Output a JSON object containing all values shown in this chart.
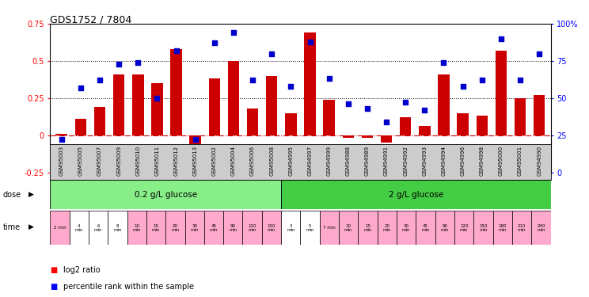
{
  "title": "GDS1752 / 7804",
  "categories": [
    "GSM95003",
    "GSM95005",
    "GSM95007",
    "GSM95009",
    "GSM95010",
    "GSM95011",
    "GSM95012",
    "GSM95013",
    "GSM95002",
    "GSM95004",
    "GSM95006",
    "GSM95008",
    "GSM94995",
    "GSM94997",
    "GSM94999",
    "GSM94988",
    "GSM94989",
    "GSM94991",
    "GSM94992",
    "GSM94993",
    "GSM94994",
    "GSM94996",
    "GSM94998",
    "GSM95000",
    "GSM95001",
    "GSM94990"
  ],
  "log2_ratio": [
    0.01,
    0.11,
    0.19,
    0.41,
    0.41,
    0.35,
    0.58,
    -0.12,
    0.38,
    0.5,
    0.18,
    0.4,
    0.15,
    0.69,
    0.24,
    -0.02,
    -0.02,
    -0.05,
    0.12,
    0.06,
    0.41,
    0.15,
    0.13,
    0.57,
    0.25,
    0.27
  ],
  "percentile_rank": [
    22,
    57,
    62,
    73,
    74,
    50,
    82,
    22,
    87,
    94,
    62,
    80,
    58,
    88,
    63,
    46,
    43,
    34,
    47,
    42,
    74,
    58,
    62,
    90,
    62,
    80
  ],
  "bar_color": "#cc0000",
  "scatter_color": "#0000cc",
  "hline_color": "#cc0000",
  "dotline_color": "#000000",
  "ylim_left": [
    -0.25,
    0.75
  ],
  "ylim_right": [
    0,
    100
  ],
  "yticks_left": [
    -0.25,
    0.0,
    0.25,
    0.5,
    0.75
  ],
  "yticks_left_labels": [
    "-0.25",
    "0",
    "0.25",
    "0.5",
    "0.75"
  ],
  "yticks_right": [
    0,
    25,
    50,
    75,
    100
  ],
  "yticks_right_labels": [
    "0",
    "25",
    "50",
    "75",
    "100%"
  ],
  "hlines": [
    0.25,
    0.5
  ],
  "dose_labels": [
    "0.2 g/L glucose",
    "2 g/L glucose"
  ],
  "dose_color_1": "#88ee88",
  "dose_color_2": "#44cc44",
  "dose_split": 12,
  "time_labels": [
    "2 min",
    "4\nmin",
    "6\nmin",
    "8\nmin",
    "10\nmin",
    "15\nmin",
    "20\nmin",
    "30\nmin",
    "45\nmin",
    "90\nmin",
    "120\nmin",
    "150\nmin",
    "3\nmin",
    "5\nmin",
    "7 min",
    "10\nmin",
    "15\nmin",
    "20\nmin",
    "30\nmin",
    "45\nmin",
    "90\nmin",
    "120\nmin",
    "150\nmin",
    "180\nmin",
    "210\nmin",
    "240\nmin"
  ],
  "time_bg": [
    "#ffaacc",
    "#ffffff",
    "#ffffff",
    "#ffffff",
    "#ffaacc",
    "#ffaacc",
    "#ffaacc",
    "#ffaacc",
    "#ffaacc",
    "#ffaacc",
    "#ffaacc",
    "#ffaacc",
    "#ffffff",
    "#ffffff",
    "#ffaacc",
    "#ffaacc",
    "#ffaacc",
    "#ffaacc",
    "#ffaacc",
    "#ffaacc",
    "#ffaacc",
    "#ffaacc",
    "#ffaacc",
    "#ffaacc",
    "#ffaacc",
    "#ffaacc"
  ],
  "legend_items": [
    {
      "label": "log2 ratio",
      "color": "#cc0000"
    },
    {
      "label": "percentile rank within the sample",
      "color": "#0000cc"
    }
  ],
  "xlabel_dose": "dose",
  "xlabel_time": "time"
}
